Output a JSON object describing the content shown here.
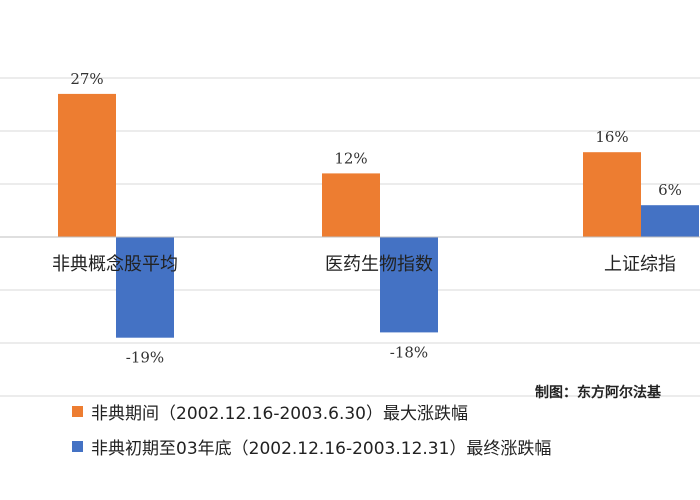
{
  "chart_data": {
    "type": "bar",
    "categories": [
      "非典概念股平均",
      "医药生物指数",
      "上证综指"
    ],
    "series": [
      {
        "name": "非典期间（2002.12.16-2003.6.30）最大涨跌幅",
        "values": [
          27,
          12,
          16
        ],
        "labels": [
          "27%",
          "12%",
          "16%"
        ],
        "color": "#ED7D31"
      },
      {
        "name": "非典初期至03年底（2002.12.16-2003.12.31）最终涨跌幅",
        "values": [
          -19,
          -18,
          6
        ],
        "labels": [
          "-19%",
          "-18%",
          "6%"
        ],
        "color": "#4472C4"
      }
    ],
    "unit": "%",
    "ylim": [
      -30,
      30
    ],
    "grid": true,
    "legend_position": "bottom-left"
  },
  "credit": "制图：东方阿尔法基"
}
